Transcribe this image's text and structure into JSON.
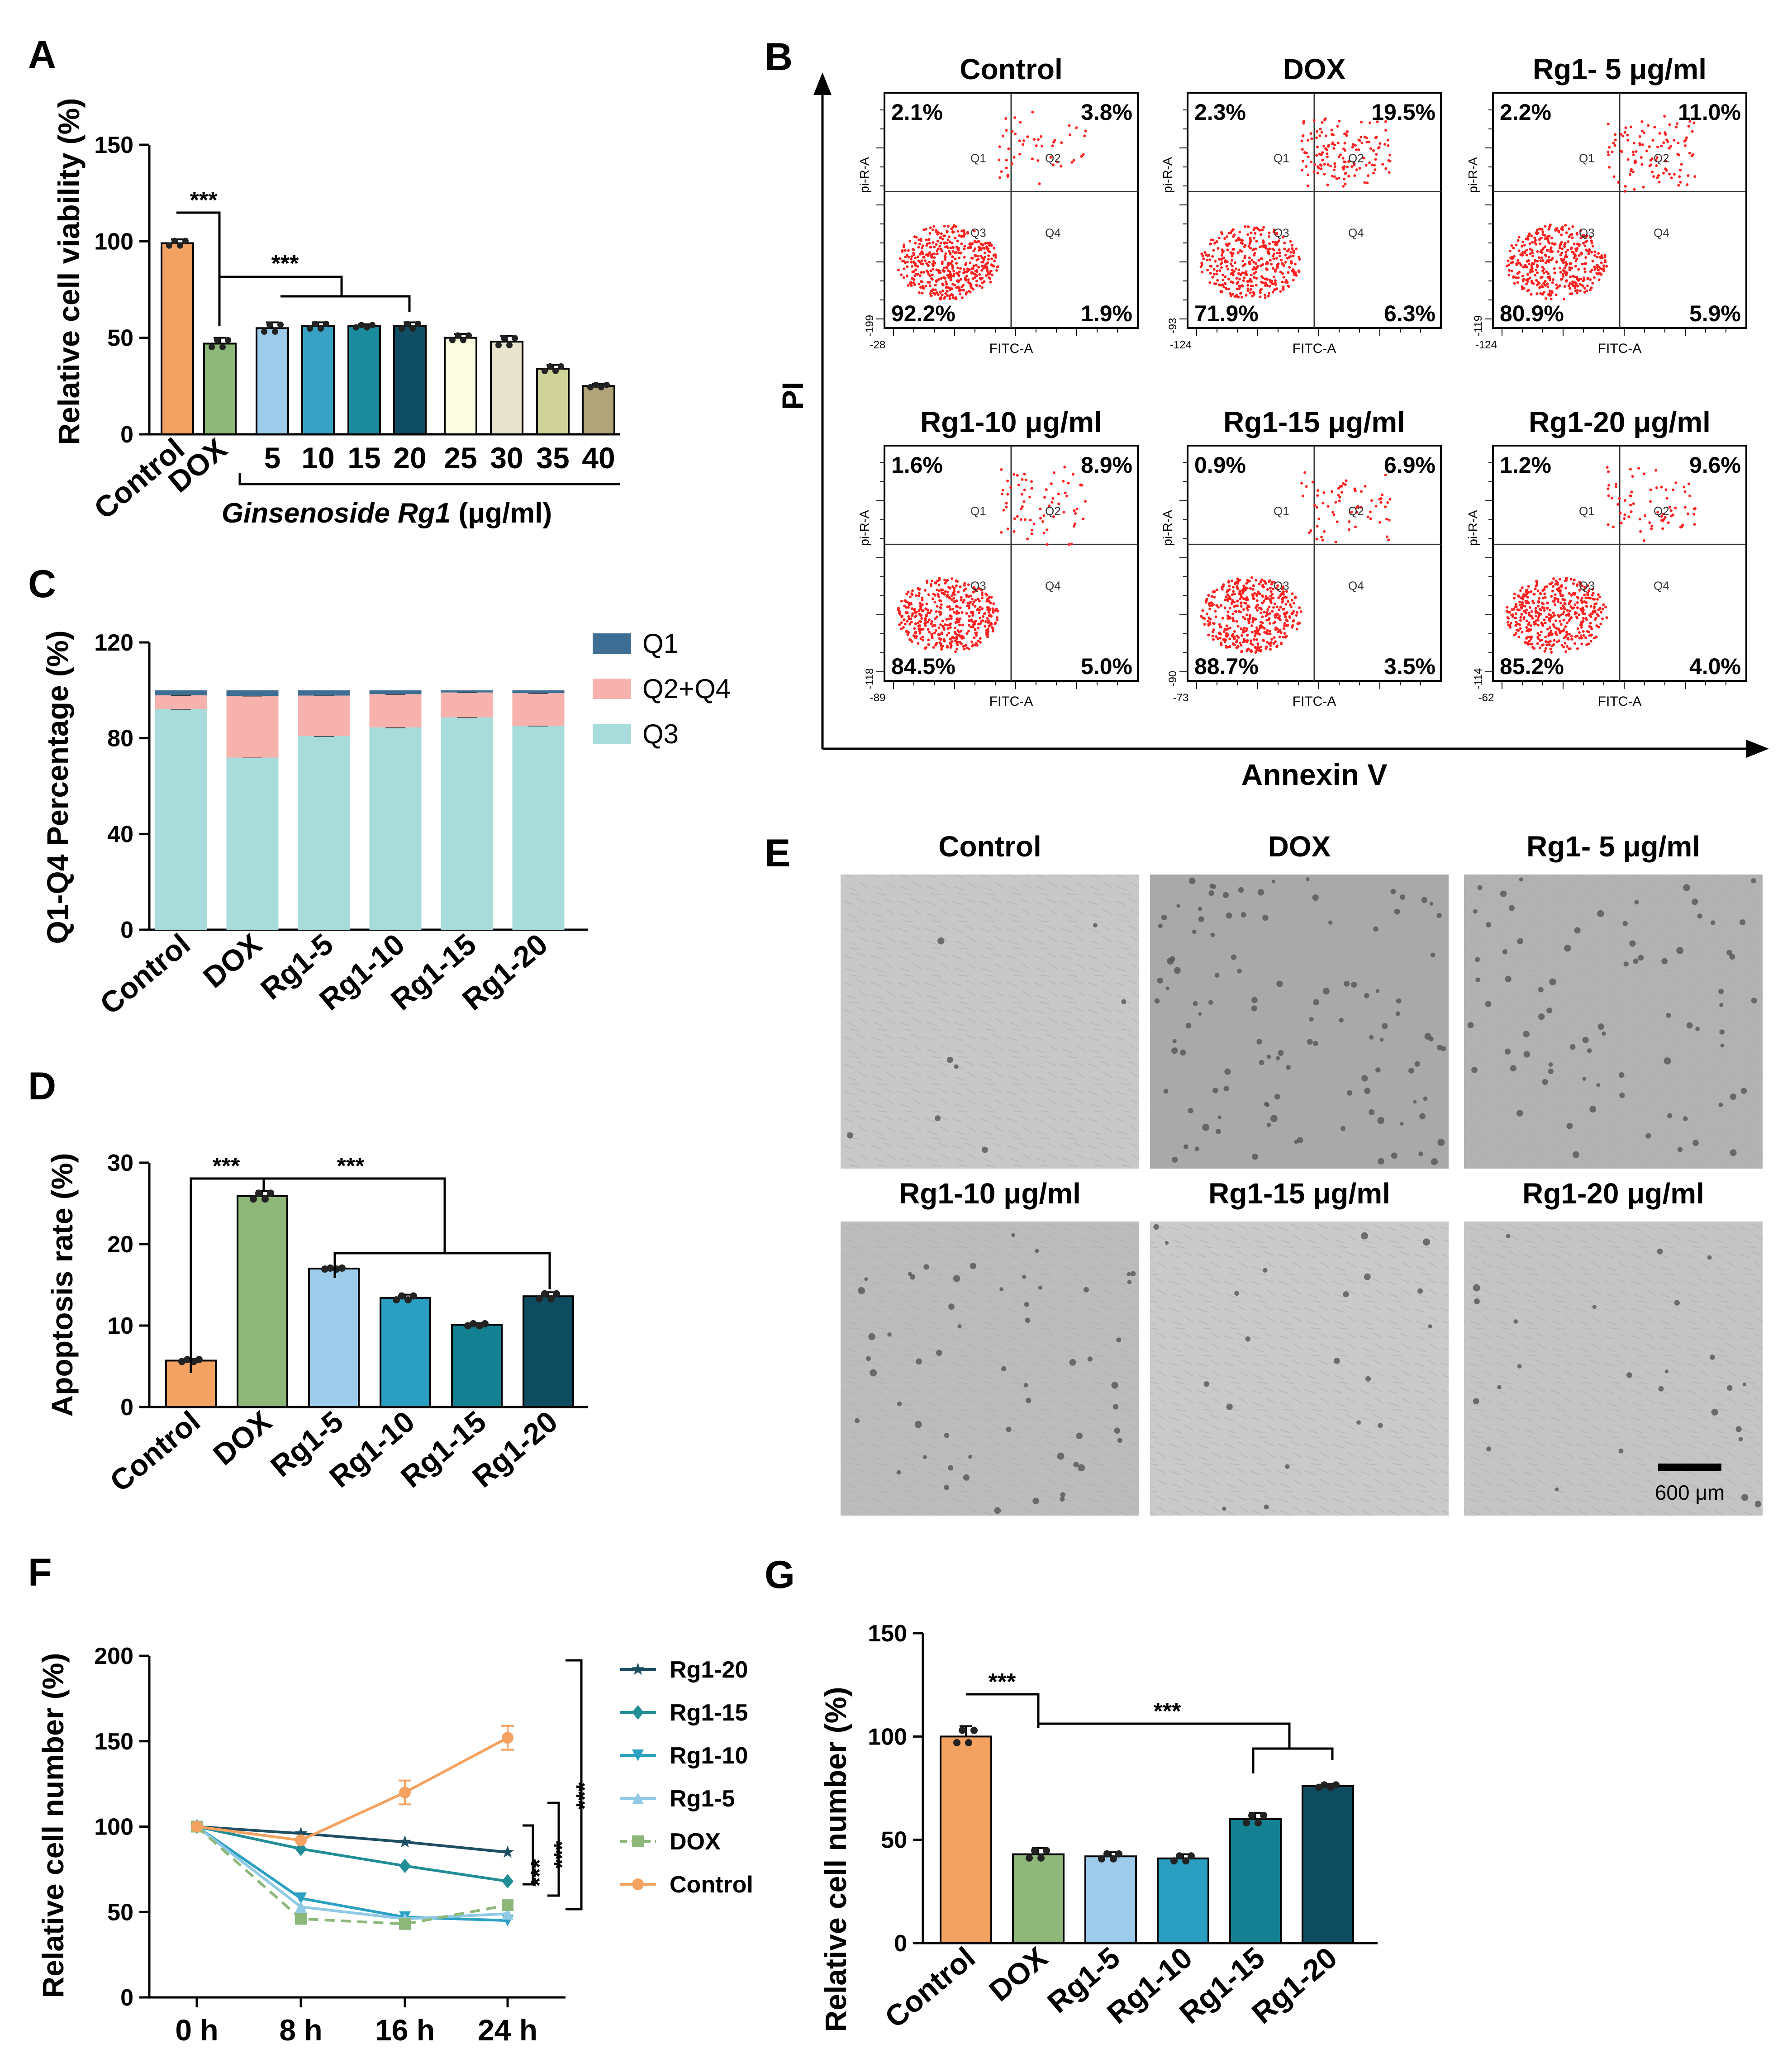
{
  "figure": {
    "panel_letters": [
      "A",
      "B",
      "C",
      "D",
      "E",
      "F",
      "G"
    ],
    "significance": "***"
  },
  "chart_data": [
    {
      "id": "A",
      "type": "bar",
      "categories": [
        "Control",
        "DOX",
        "5",
        "10",
        "15",
        "20",
        "25",
        "30",
        "35",
        "40"
      ],
      "values": [
        99,
        47,
        55,
        56,
        56,
        56,
        50,
        48,
        34,
        25
      ],
      "errors": [
        2,
        3,
        3,
        2,
        1,
        2,
        2,
        3,
        2,
        1
      ],
      "colors": [
        "#F4A261",
        "#8DB87A",
        "#9DCBEA",
        "#38A2C5",
        "#1A8C9E",
        "#0F4D63",
        "#FCFCE0",
        "#E8E3CD",
        "#CFD39A",
        "#B0A57A"
      ],
      "ylabel": "Relative cell viability (%)",
      "xlabel_italic": "Ginsenoside Rg1",
      "xlabel_unit": " (μg/ml)",
      "ylim": [
        0,
        150
      ],
      "yticks": [
        0,
        50,
        100,
        150
      ]
    },
    {
      "id": "C",
      "type": "bar",
      "stacked": true,
      "categories": [
        "Control",
        "DOX",
        "Rg1-5",
        "Rg1-10",
        "Rg1-15",
        "Rg1-20"
      ],
      "series": [
        {
          "name": "Q3",
          "values": [
            92.2,
            71.9,
            80.9,
            84.5,
            88.7,
            85.2
          ],
          "color": "#A8DCDA"
        },
        {
          "name": "Q2+Q4",
          "values": [
            5.7,
            25.8,
            16.9,
            13.9,
            10.4,
            13.6
          ],
          "color": "#F7B2AE"
        },
        {
          "name": "Q1",
          "values": [
            2.1,
            2.3,
            2.2,
            1.6,
            0.9,
            1.2
          ],
          "color": "#3E6E94"
        }
      ],
      "legend_order": [
        "Q1",
        "Q2+Q4",
        "Q3"
      ],
      "ylabel": "Q1-Q4 Percentage (%)",
      "ylim": [
        0,
        120
      ],
      "yticks": [
        0,
        40,
        80,
        120
      ]
    },
    {
      "id": "D",
      "type": "bar",
      "categories": [
        "Control",
        "DOX",
        "Rg1-5",
        "Rg1-10",
        "Rg1-15",
        "Rg1-20"
      ],
      "values": [
        5.7,
        25.9,
        17.0,
        13.4,
        10.1,
        13.6
      ],
      "errors": [
        0.2,
        0.6,
        0.1,
        0.4,
        0.2,
        0.5
      ],
      "colors": [
        "#F4A261",
        "#8DB87A",
        "#9DCBEA",
        "#2B9FC2",
        "#138191",
        "#0E4C60"
      ],
      "ylabel": "Apoptosis rate (%)",
      "ylim": [
        0,
        30
      ],
      "yticks": [
        0,
        10,
        20,
        30
      ]
    },
    {
      "id": "F",
      "type": "line",
      "x": [
        "0 h",
        "8 h",
        "16 h",
        "24 h"
      ],
      "series": [
        {
          "name": "Rg1-20",
          "values": [
            100,
            96,
            91,
            85
          ],
          "color": "#1D4E63",
          "marker": "star"
        },
        {
          "name": "Rg1-15",
          "values": [
            100,
            87,
            77,
            68
          ],
          "color": "#218E96",
          "marker": "diamond"
        },
        {
          "name": "Rg1-10",
          "values": [
            100,
            58,
            47,
            45
          ],
          "color": "#2BA0C3",
          "marker": "triangle-down"
        },
        {
          "name": "Rg1-5",
          "values": [
            100,
            53,
            46,
            49
          ],
          "color": "#8FC9E6",
          "marker": "triangle-up"
        },
        {
          "name": "DOX",
          "values": [
            100,
            46,
            43,
            54
          ],
          "color": "#8DB87A",
          "marker": "square",
          "dashed": true
        },
        {
          "name": "Control",
          "values": [
            100,
            92,
            120,
            152
          ],
          "color": "#F4A261",
          "marker": "circle"
        }
      ],
      "ylabel": "Relative cell number (%)",
      "ylim": [
        0,
        200
      ],
      "yticks": [
        0,
        50,
        100,
        150,
        200
      ]
    },
    {
      "id": "G",
      "type": "bar",
      "categories": [
        "Control",
        "DOX",
        "Rg1-5",
        "Rg1-10",
        "Rg1-15",
        "Rg1-20"
      ],
      "values": [
        100,
        43,
        42,
        41,
        60,
        76
      ],
      "errors": [
        5,
        3,
        2,
        2,
        3,
        1
      ],
      "colors": [
        "#F4A261",
        "#8DB87A",
        "#9DCBEA",
        "#2B9FC2",
        "#138191",
        "#0E4C60"
      ],
      "ylabel": "Relative cell number (%)",
      "ylim": [
        0,
        150
      ],
      "yticks": [
        0,
        50,
        100,
        150
      ]
    }
  ],
  "flow": {
    "x_axis_title": "Annexin V",
    "y_axis_title": "PI",
    "x_channel": "FITC-A",
    "y_channel": "pi-R-A",
    "quadrant_labels": [
      "Q1",
      "Q2",
      "Q3",
      "Q4"
    ],
    "panels": [
      {
        "title": "Control",
        "q1": "2.1%",
        "q2": "3.8%",
        "q3": "92.2%",
        "q4": "1.9%",
        "ymin": "-199",
        "xmin": "-28"
      },
      {
        "title": "DOX",
        "q1": "2.3%",
        "q2": "19.5%",
        "q3": "71.9%",
        "q4": "6.3%",
        "ymin": "-93",
        "xmin": "-124"
      },
      {
        "title": "Rg1- 5 μg/ml",
        "q1": "2.2%",
        "q2": "11.0%",
        "q3": "80.9%",
        "q4": "5.9%",
        "ymin": "-119",
        "xmin": "-124"
      },
      {
        "title": "Rg1-10 μg/ml",
        "q1": "1.6%",
        "q2": "8.9%",
        "q3": "84.5%",
        "q4": "5.0%",
        "ymin": "-118",
        "xmin": "-89"
      },
      {
        "title": "Rg1-15 μg/ml",
        "q1": "0.9%",
        "q2": "6.9%",
        "q3": "88.7%",
        "q4": "3.5%",
        "ymin": "-90",
        "xmin": "-73"
      },
      {
        "title": "Rg1-20 μg/ml",
        "q1": "1.2%",
        "q2": "9.6%",
        "q3": "85.2%",
        "q4": "4.0%",
        "ymin": "-114",
        "xmin": "-62"
      }
    ]
  },
  "micrographs": {
    "titles": [
      "Control",
      "DOX",
      "Rg1- 5 μg/ml",
      "Rg1-10 μg/ml",
      "Rg1-15 μg/ml",
      "Rg1-20 μg/ml"
    ],
    "scale_bar": "600 μm"
  }
}
